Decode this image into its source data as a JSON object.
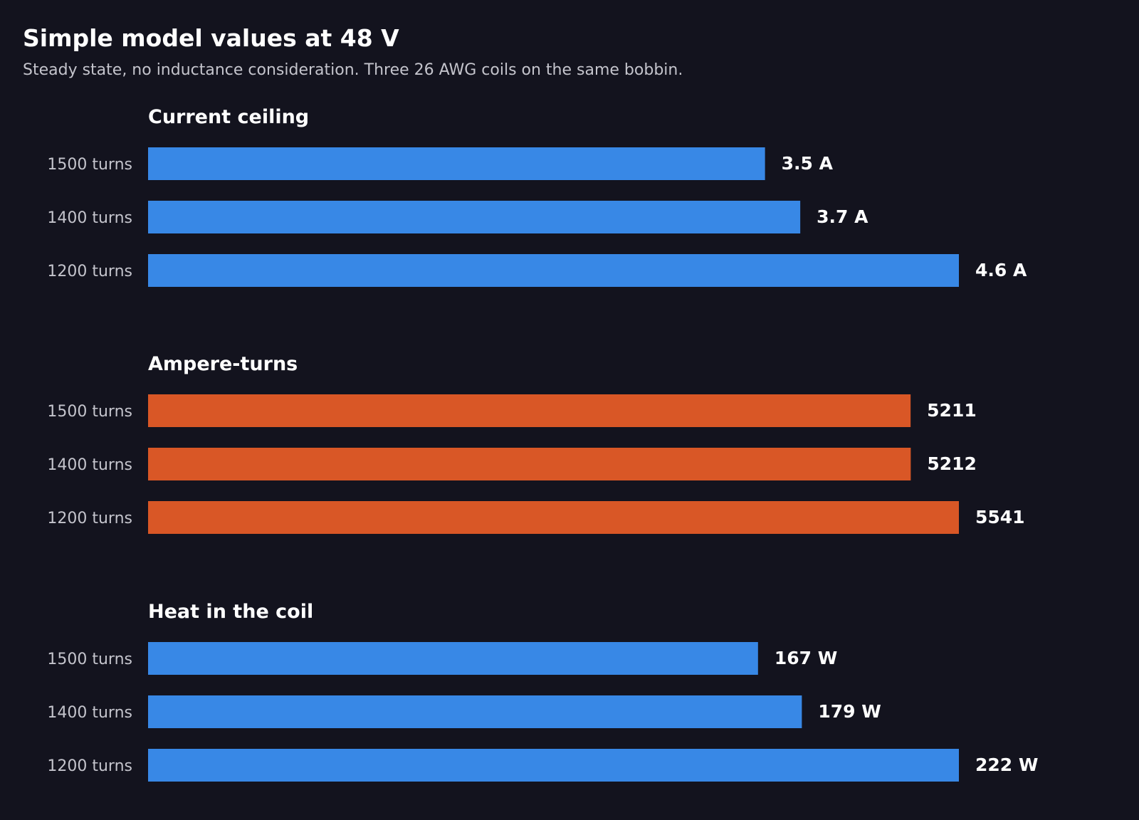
{
  "header": {
    "title": "Simple model values at 48 V",
    "subtitle": "Steady state, no inductance consideration. Three 26 AWG coils on the same bobbin."
  },
  "colors": {
    "background": "#13131e",
    "blue": "#3888e6",
    "orange": "#d95726",
    "text": "#ffffff",
    "muted_text": "#c4c4cc"
  },
  "chart_data": [
    {
      "type": "bar",
      "orientation": "horizontal",
      "title": "Current ceiling",
      "categories": [
        "1500 turns",
        "1400 turns",
        "1200 turns"
      ],
      "values": [
        3.5,
        3.7,
        4.6
      ],
      "value_labels": [
        "3.5 A",
        "3.7 A",
        "4.6 A"
      ],
      "color": "#3888e6",
      "xlim": [
        0,
        4.6
      ],
      "grid": false
    },
    {
      "type": "bar",
      "orientation": "horizontal",
      "title": "Ampere-turns",
      "categories": [
        "1500 turns",
        "1400 turns",
        "1200 turns"
      ],
      "values": [
        5211,
        5212,
        5541
      ],
      "value_labels": [
        "5211",
        "5212",
        "5541"
      ],
      "color": "#d95726",
      "xlim": [
        0,
        5541
      ],
      "grid": false
    },
    {
      "type": "bar",
      "orientation": "horizontal",
      "title": "Heat in the coil",
      "categories": [
        "1500 turns",
        "1400 turns",
        "1200 turns"
      ],
      "values": [
        167,
        179,
        222
      ],
      "value_labels": [
        "167 W",
        "179 W",
        "222 W"
      ],
      "color": "#3888e6",
      "xlim": [
        0,
        222
      ],
      "grid": false
    }
  ]
}
